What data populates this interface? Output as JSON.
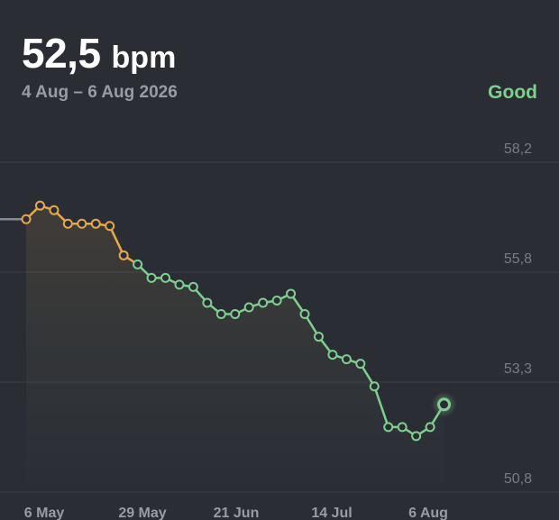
{
  "header": {
    "value": "52,5",
    "unit": "bpm",
    "date_range": "4 Aug – 6 Aug 2026",
    "status": "Good"
  },
  "colors": {
    "background": "#2b2d35",
    "good": "#7fcf8e",
    "warning": "#e6a84a",
    "grid": "#3b3d45"
  },
  "chart_data": {
    "type": "line",
    "y_ticks": [
      "58,2",
      "55,8",
      "53,3",
      "50,8"
    ],
    "y_tick_values": [
      58.2,
      55.8,
      53.3,
      50.8
    ],
    "x_ticks": [
      "6 May",
      "29 May",
      "21 Jun",
      "14 Jul",
      "6 Aug"
    ],
    "ylim": [
      50.8,
      58.2
    ],
    "series": [
      {
        "values": [
          56.6,
          56.9,
          56.8,
          56.5,
          56.5,
          56.5,
          56.45,
          55.8,
          55.6,
          55.3,
          55.3,
          55.15,
          55.1,
          54.75,
          54.5,
          54.5,
          54.65,
          54.75,
          54.8,
          54.95,
          54.5,
          54.0,
          53.6,
          53.5,
          53.4,
          52.9,
          52.0,
          52.0,
          51.8,
          52.0,
          52.5
        ],
        "status": [
          "warning",
          "warning",
          "warning",
          "warning",
          "warning",
          "warning",
          "warning",
          "warning",
          "good",
          "good",
          "good",
          "good",
          "good",
          "good",
          "good",
          "good",
          "good",
          "good",
          "good",
          "good",
          "good",
          "good",
          "good",
          "good",
          "good",
          "good",
          "good",
          "good",
          "good",
          "good",
          "good"
        ]
      }
    ],
    "previous_value": 56.6
  }
}
